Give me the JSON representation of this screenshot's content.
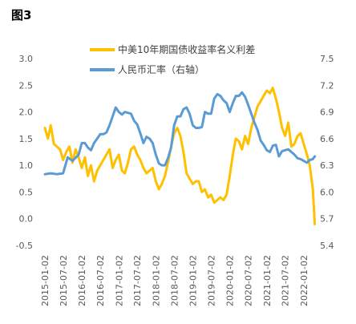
{
  "figure_label": "图3",
  "colors": {
    "series1": "#FFC000",
    "series2": "#5B9BD5",
    "axis_text": "#595959"
  },
  "chart_data": {
    "type": "line",
    "title": "",
    "legend_position": "top-center",
    "grid": false,
    "y_left": {
      "min": -0.5,
      "max": 3.0,
      "ticks": [
        "3.0",
        "2.5",
        "2.0",
        "1.5",
        "1.0",
        "0.5",
        "0.0",
        "-0.5"
      ]
    },
    "y_right": {
      "min": 5.4,
      "max": 7.5,
      "ticks": [
        "7.5",
        "7.2",
        "6.9",
        "6.6",
        "6.3",
        "6.0",
        "5.7",
        "5.4"
      ]
    },
    "x_ticks": [
      "2015-01-02",
      "2015-07-02",
      "2016-01-02",
      "2016-07-02",
      "2017-01-02",
      "2017-07-02",
      "2018-01-02",
      "2018-07-02",
      "2019-01-02",
      "2019-07-02",
      "2020-01-02",
      "2020-07-02",
      "2021-01-02",
      "2021-07-02",
      "2022-01-02"
    ],
    "series": [
      {
        "name": "中美10年期国债收益率名义利差",
        "axis": "left",
        "x": [
          "2015-01-02",
          "2015-02-01",
          "2015-03-01",
          "2015-04-01",
          "2015-05-01",
          "2015-06-01",
          "2015-07-01",
          "2015-08-01",
          "2015-09-01",
          "2015-10-01",
          "2015-11-01",
          "2015-12-01",
          "2016-01-01",
          "2016-02-01",
          "2016-03-01",
          "2016-04-01",
          "2016-05-01",
          "2016-06-01",
          "2016-07-01",
          "2016-08-01",
          "2016-09-01",
          "2016-10-01",
          "2016-11-01",
          "2016-12-01",
          "2017-01-01",
          "2017-02-01",
          "2017-03-01",
          "2017-04-01",
          "2017-05-01",
          "2017-06-01",
          "2017-07-01",
          "2017-08-01",
          "2017-09-01",
          "2017-10-01",
          "2017-11-01",
          "2017-12-01",
          "2018-01-01",
          "2018-02-01",
          "2018-03-01",
          "2018-04-01",
          "2018-05-01",
          "2018-06-01",
          "2018-07-01",
          "2018-08-01",
          "2018-09-01",
          "2018-10-01",
          "2018-11-01",
          "2018-12-01",
          "2019-01-01",
          "2019-02-01",
          "2019-03-01",
          "2019-04-01",
          "2019-05-01",
          "2019-06-01",
          "2019-07-01",
          "2019-08-01",
          "2019-09-01",
          "2019-10-01",
          "2019-11-01",
          "2019-12-01",
          "2020-01-01",
          "2020-02-01",
          "2020-03-01",
          "2020-04-01",
          "2020-05-01",
          "2020-06-01",
          "2020-07-01",
          "2020-08-01",
          "2020-09-01",
          "2020-10-01",
          "2020-11-01",
          "2020-12-01",
          "2021-01-01",
          "2021-02-01",
          "2021-03-01",
          "2021-04-01",
          "2021-05-01",
          "2021-06-01",
          "2021-07-01",
          "2021-08-01",
          "2021-09-01",
          "2021-10-01",
          "2021-11-01",
          "2021-12-01",
          "2022-01-01",
          "2022-02-01",
          "2022-03-01",
          "2022-04-01",
          "2022-04-20"
        ],
        "values": [
          1.7,
          1.5,
          1.75,
          1.4,
          1.35,
          1.3,
          1.1,
          1.25,
          1.35,
          1.05,
          1.3,
          1.15,
          0.95,
          1.15,
          0.8,
          1.0,
          0.7,
          0.9,
          1.0,
          1.1,
          1.2,
          1.3,
          0.95,
          1.1,
          1.2,
          0.9,
          0.85,
          1.05,
          1.3,
          1.35,
          1.2,
          1.1,
          0.95,
          0.85,
          0.9,
          0.95,
          0.7,
          0.55,
          0.65,
          0.8,
          1.05,
          1.35,
          1.6,
          1.7,
          1.55,
          1.25,
          0.85,
          0.75,
          0.65,
          0.7,
          0.7,
          0.5,
          0.55,
          0.4,
          0.45,
          0.3,
          0.35,
          0.4,
          0.35,
          0.45,
          0.8,
          1.2,
          1.5,
          1.45,
          1.3,
          1.55,
          1.4,
          1.7,
          1.9,
          2.1,
          2.2,
          2.3,
          2.4,
          2.35,
          2.45,
          2.25,
          2.0,
          1.7,
          1.55,
          1.8,
          1.35,
          1.4,
          1.55,
          1.6,
          1.4,
          1.2,
          1.0,
          0.55,
          -0.1
        ]
      },
      {
        "name": "人民币汇率（右轴）",
        "axis": "right",
        "x": [
          "2015-01-02",
          "2015-03-01",
          "2015-05-01",
          "2015-07-01",
          "2015-08-15",
          "2015-10-01",
          "2015-12-01",
          "2016-01-01",
          "2016-02-01",
          "2016-03-01",
          "2016-04-01",
          "2016-05-01",
          "2016-06-01",
          "2016-07-01",
          "2016-08-01",
          "2016-09-01",
          "2016-10-01",
          "2016-11-01",
          "2016-12-01",
          "2017-01-01",
          "2017-02-01",
          "2017-03-01",
          "2017-04-01",
          "2017-05-01",
          "2017-06-01",
          "2017-07-01",
          "2017-08-01",
          "2017-09-01",
          "2017-10-01",
          "2017-11-01",
          "2017-12-01",
          "2018-01-01",
          "2018-02-01",
          "2018-03-01",
          "2018-04-01",
          "2018-05-01",
          "2018-06-01",
          "2018-07-01",
          "2018-08-01",
          "2018-09-01",
          "2018-10-01",
          "2018-11-01",
          "2018-12-01",
          "2019-01-01",
          "2019-02-01",
          "2019-03-01",
          "2019-04-01",
          "2019-05-01",
          "2019-06-01",
          "2019-07-01",
          "2019-08-01",
          "2019-09-01",
          "2019-10-01",
          "2019-11-01",
          "2019-12-01",
          "2020-01-01",
          "2020-02-01",
          "2020-03-01",
          "2020-04-01",
          "2020-05-01",
          "2020-06-01",
          "2020-07-01",
          "2020-08-01",
          "2020-09-01",
          "2020-10-01",
          "2020-11-01",
          "2020-12-01",
          "2021-01-01",
          "2021-02-01",
          "2021-03-01",
          "2021-04-01",
          "2021-05-01",
          "2021-06-01",
          "2021-07-01",
          "2021-08-01",
          "2021-09-01",
          "2021-10-01",
          "2021-11-01",
          "2021-12-01",
          "2022-01-01",
          "2022-02-01",
          "2022-03-01",
          "2022-04-01",
          "2022-04-20"
        ],
        "values": [
          6.2,
          6.21,
          6.2,
          6.21,
          6.39,
          6.35,
          6.42,
          6.55,
          6.55,
          6.5,
          6.47,
          6.55,
          6.6,
          6.65,
          6.65,
          6.67,
          6.75,
          6.85,
          6.95,
          6.9,
          6.87,
          6.9,
          6.89,
          6.88,
          6.8,
          6.76,
          6.66,
          6.55,
          6.62,
          6.6,
          6.55,
          6.42,
          6.32,
          6.3,
          6.3,
          6.38,
          6.5,
          6.75,
          6.85,
          6.85,
          6.93,
          6.95,
          6.88,
          6.75,
          6.72,
          6.72,
          6.73,
          6.9,
          6.88,
          6.88,
          7.05,
          7.1,
          7.08,
          7.03,
          7.0,
          6.9,
          7.0,
          7.08,
          7.08,
          7.12,
          7.07,
          6.98,
          6.88,
          6.78,
          6.7,
          6.58,
          6.53,
          6.47,
          6.45,
          6.52,
          6.53,
          6.4,
          6.46,
          6.47,
          6.48,
          6.45,
          6.42,
          6.38,
          6.37,
          6.35,
          6.33,
          6.36,
          6.37,
          6.4
        ]
      }
    ]
  }
}
